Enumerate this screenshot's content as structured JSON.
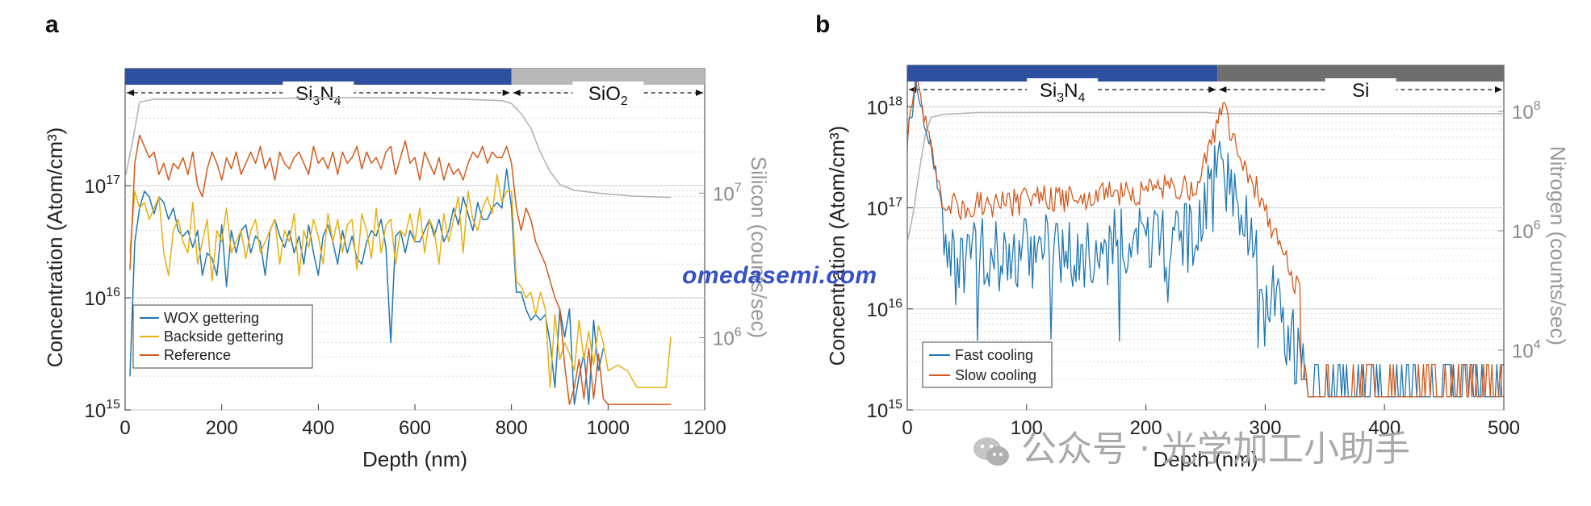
{
  "panels": {
    "a_letter": "a",
    "b_letter": "b"
  },
  "watermark": "omedasemi.com",
  "wechat_text": "公众号 · 光学加工小助手",
  "colors": {
    "blue_series": "#1f77b4",
    "yellow_series": "#e8b00f",
    "red_series": "#d35a1c",
    "gray_series": "#b4b4b4",
    "band_blue": "#2f4fa0",
    "band_gray_a": "#b8b8b8",
    "band_gray_b": "#6e6e6e"
  },
  "chart_data": [
    {
      "id": "a",
      "type": "line",
      "xlabel": "Depth (nm)",
      "ylabel": "Concentration (Atom/cm³)",
      "y2label": "Silicon (counts/sec)",
      "xlim": [
        0,
        1200
      ],
      "ylim_log": [
        15,
        17.9
      ],
      "y2lim_log": [
        5.5,
        7.75
      ],
      "log_scale": true,
      "xticks": [
        "0",
        "200",
        "400",
        "600",
        "800",
        "1000",
        "1200"
      ],
      "yticks": [
        {
          "label": "10",
          "exp": "15",
          "value": 15
        },
        {
          "label": "10",
          "exp": "16",
          "value": 16
        },
        {
          "label": "10",
          "exp": "17",
          "value": 17
        }
      ],
      "y2ticks": [
        {
          "label": "10",
          "exp": "6",
          "value": 6
        },
        {
          "label": "10",
          "exp": "7",
          "value": 7
        }
      ],
      "regions": [
        {
          "name": "Si3N4",
          "base": "Si",
          "sub1": "3",
          "mid": "N",
          "sub2": "4",
          "x_from": 0,
          "x_to": 800,
          "color": "#2f4fa0"
        },
        {
          "name": "SiO2",
          "base": "SiO",
          "sub1": "2",
          "mid": "",
          "sub2": "",
          "x_from": 800,
          "x_to": 1200,
          "color": "#b8b8b8"
        }
      ],
      "legend_position": "bottom-left",
      "series": [
        {
          "name": "WOX gettering",
          "color": "#1f77b4",
          "x_step": 10,
          "x_start": 10,
          "log_values": [
            15.3,
            16.5,
            16.8,
            16.95,
            16.9,
            16.75,
            16.9,
            16.85,
            16.7,
            16.8,
            16.6,
            16.55,
            16.6,
            16.45,
            16.6,
            16.2,
            16.4,
            16.35,
            16.2,
            16.65,
            16.1,
            16.6,
            16.4,
            16.6,
            16.65,
            16.4,
            16.55,
            16.5,
            16.2,
            16.6,
            16.7,
            16.55,
            16.45,
            16.6,
            16.4,
            16.55,
            16.3,
            16.65,
            16.4,
            16.2,
            16.55,
            16.65,
            16.5,
            16.3,
            16.6,
            16.4,
            16.55,
            16.35,
            16.3,
            16.5,
            16.6,
            16.55,
            16.7,
            16.45,
            15.6,
            16.55,
            16.6,
            16.4,
            16.6,
            16.5,
            16.5,
            16.6,
            16.7,
            16.55,
            16.7,
            16.5,
            16.6,
            16.8,
            16.65,
            16.9,
            16.75,
            16.6,
            16.85,
            16.7,
            16.7,
            16.8,
            16.85,
            16.8,
            17.15,
            16.8,
            16.05,
            16.05,
            15.9,
            15.8,
            15.85,
            15.8,
            15.85,
            15.6,
            15.2,
            15.9,
            15.65,
            15.9,
            15.05,
            15.3,
            15.5,
            15.05,
            15.8,
            15.35,
            15.55
          ],
          "x_override_tail": true
        },
        {
          "name": "Backside gettering",
          "color": "#e8b00f",
          "x_step": 10,
          "x_start": 10,
          "log_values": [
            16.4,
            16.95,
            16.8,
            16.85,
            16.7,
            16.8,
            16.9,
            16.4,
            16.2,
            16.6,
            16.7,
            16.5,
            16.4,
            16.85,
            16.3,
            16.5,
            16.7,
            16.15,
            16.6,
            16.5,
            16.8,
            16.4,
            16.5,
            16.6,
            16.35,
            16.6,
            16.7,
            16.4,
            16.5,
            16.6,
            16.7,
            16.3,
            16.6,
            16.5,
            16.75,
            16.2,
            16.6,
            16.45,
            16.7,
            16.55,
            16.3,
            16.75,
            16.5,
            16.7,
            16.4,
            16.65,
            16.7,
            16.25,
            16.75,
            16.6,
            16.35,
            16.8,
            16.4,
            16.65,
            16.7,
            16.3,
            16.6,
            16.55,
            16.75,
            16.5,
            16.8,
            16.4,
            16.7,
            16.6,
            16.3,
            16.75,
            16.5,
            16.7,
            16.9,
            16.4,
            16.95,
            16.7,
            16.6,
            16.8,
            16.9,
            16.75,
            17.1,
            16.85,
            16.95,
            16.95,
            16.15,
            16.1,
            16.0,
            16.05,
            15.85,
            16.05,
            15.9,
            15.2,
            15.85,
            15.45,
            15.6,
            15.5,
            15.35,
            15.8,
            15.45,
            15.7,
            15.4,
            15.75,
            15.6
          ],
          "x_override_tail": true
        },
        {
          "name": "Reference",
          "color": "#d35a1c",
          "x_step": 10,
          "x_start": 10,
          "log_values": [
            16.25,
            17.2,
            17.45,
            17.35,
            17.25,
            17.3,
            17.1,
            17.2,
            17.05,
            17.2,
            17.15,
            17.25,
            17.1,
            17.3,
            17.0,
            16.9,
            17.15,
            17.3,
            17.2,
            17.05,
            17.25,
            17.15,
            17.3,
            17.1,
            17.2,
            17.3,
            17.2,
            17.35,
            17.15,
            17.25,
            17.05,
            17.3,
            17.2,
            17.15,
            17.25,
            17.3,
            17.2,
            17.1,
            17.35,
            17.2,
            17.25,
            17.15,
            17.3,
            17.1,
            17.3,
            17.2,
            17.25,
            17.35,
            17.15,
            17.3,
            17.2,
            17.25,
            17.15,
            17.3,
            17.35,
            17.1,
            17.25,
            17.4,
            17.2,
            17.25,
            17.05,
            17.3,
            17.2,
            17.1,
            17.25,
            17.05,
            17.2,
            17.1,
            17.15,
            17.05,
            17.2,
            17.3,
            17.25,
            17.35,
            17.2,
            17.3,
            17.25,
            17.25,
            17.35,
            17.2,
            16.8,
            16.6,
            16.8,
            16.7,
            16.5,
            16.4,
            16.3,
            16.15,
            16.0,
            15.9,
            15.4,
            15.05,
            15.2,
            15.45,
            15.1,
            15.55,
            15.1,
            15.5,
            15.1
          ],
          "x_override_tail": true
        }
      ],
      "tail_x": [
        810,
        820,
        830,
        840,
        850,
        860,
        870,
        880,
        890,
        900,
        910,
        920,
        930,
        940,
        950,
        960,
        970,
        980,
        990
      ],
      "silicon": {
        "color": "#b4b4b4",
        "points": [
          [
            0,
            7.1
          ],
          [
            15,
            7.35
          ],
          [
            30,
            7.63
          ],
          [
            60,
            7.65
          ],
          [
            200,
            7.65
          ],
          [
            400,
            7.66
          ],
          [
            600,
            7.66
          ],
          [
            780,
            7.64
          ],
          [
            800,
            7.62
          ],
          [
            820,
            7.55
          ],
          [
            840,
            7.45
          ],
          [
            860,
            7.28
          ],
          [
            880,
            7.15
          ],
          [
            900,
            7.06
          ],
          [
            930,
            7.02
          ],
          [
            980,
            7.0
          ],
          [
            1050,
            6.98
          ],
          [
            1130,
            6.97
          ]
        ]
      },
      "yellow_tail": [
        [
          1000,
          15.35
        ],
        [
          1020,
          15.4
        ],
        [
          1040,
          15.35
        ],
        [
          1060,
          15.2
        ],
        [
          1080,
          15.2
        ],
        [
          1100,
          15.2
        ],
        [
          1120,
          15.2
        ],
        [
          1130,
          15.65
        ]
      ],
      "red_tail": [
        [
          1000,
          15.05
        ],
        [
          1050,
          15.05
        ],
        [
          1100,
          15.05
        ],
        [
          1130,
          15.05
        ]
      ]
    },
    {
      "id": "b",
      "type": "line",
      "xlabel": "Depth (nm)",
      "ylabel": "Concentration (Atom/cm³)",
      "y2label": "Nitrogen (counts/sec)",
      "xlim": [
        0,
        500
      ],
      "ylim_log": [
        15,
        18.25
      ],
      "y2lim_log": [
        3,
        8.5
      ],
      "log_scale": true,
      "xticks": [
        "0",
        "100",
        "200",
        "300",
        "400",
        "500"
      ],
      "yticks": [
        {
          "label": "10",
          "exp": "15",
          "value": 15
        },
        {
          "label": "10",
          "exp": "16",
          "value": 16
        },
        {
          "label": "10",
          "exp": "17",
          "value": 17
        },
        {
          "label": "10",
          "exp": "18",
          "value": 18
        }
      ],
      "y2ticks": [
        {
          "label": "10",
          "exp": "4",
          "value": 4
        },
        {
          "label": "10",
          "exp": "6",
          "value": 6
        },
        {
          "label": "10",
          "exp": "8",
          "value": 8
        }
      ],
      "regions": [
        {
          "name": "Si3N4",
          "base": "Si",
          "sub1": "3",
          "mid": "N",
          "sub2": "4",
          "x_from": 0,
          "x_to": 260,
          "color": "#2f4fa0"
        },
        {
          "name": "Si",
          "base": "Si",
          "sub1": "",
          "mid": "",
          "sub2": "",
          "x_from": 260,
          "x_to": 500,
          "color": "#6e6e6e"
        }
      ],
      "legend_position": "bottom-left",
      "series": [
        {
          "name": "Fast cooling",
          "color": "#1f77b4"
        },
        {
          "name": "Slow cooling",
          "color": "#d35a1c"
        }
      ],
      "nitrogen": {
        "color": "#b4b4b4",
        "points": [
          [
            0,
            5.8
          ],
          [
            5,
            6.3
          ],
          [
            10,
            7.0
          ],
          [
            15,
            7.6
          ],
          [
            20,
            7.9
          ],
          [
            30,
            7.95
          ],
          [
            60,
            7.98
          ],
          [
            150,
            7.98
          ],
          [
            250,
            7.98
          ],
          [
            265,
            7.96
          ],
          [
            300,
            7.96
          ],
          [
            400,
            7.96
          ],
          [
            500,
            7.96
          ]
        ]
      }
    }
  ]
}
